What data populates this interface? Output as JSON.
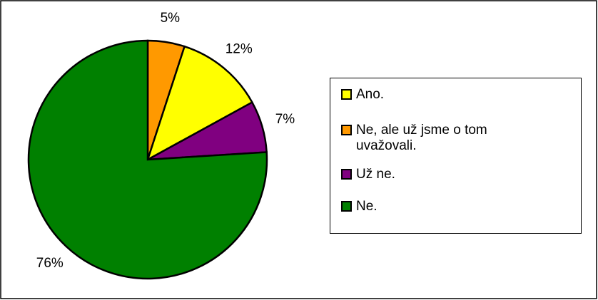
{
  "chart_data": {
    "type": "pie",
    "categories": [
      "Ano.",
      "Ne, ale už jsme o tom uvažovali.",
      "Už ne.",
      "Ne."
    ],
    "values": [
      12,
      5,
      7,
      76
    ],
    "value_labels": [
      "12%",
      "5%",
      "7%",
      "76%"
    ],
    "colors": [
      "#ffff00",
      "#ff9900",
      "#800080",
      "#008000"
    ],
    "legend": "right"
  }
}
